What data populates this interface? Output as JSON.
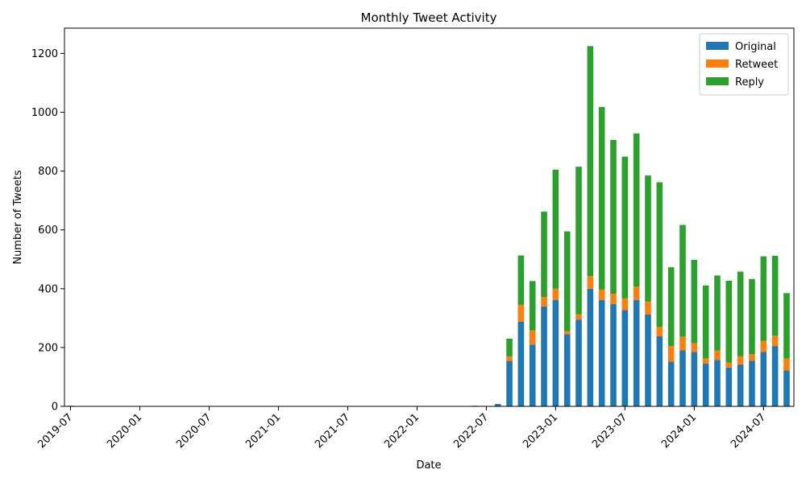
{
  "chart_data": {
    "type": "bar",
    "stacked": true,
    "title": "Monthly Tweet Activity",
    "xlabel": "Date",
    "ylabel": "Number of Tweets",
    "ylim": [
      0,
      1286
    ],
    "y_ticks": [
      0,
      200,
      400,
      600,
      800,
      1000,
      1200
    ],
    "grid": false,
    "legend_position": "top-right",
    "x_ticks": [
      "2019-07",
      "2020-01",
      "2020-07",
      "2021-01",
      "2021-07",
      "2022-01",
      "2022-07",
      "2023-01",
      "2023-07",
      "2024-01",
      "2024-07"
    ],
    "x": [
      "2019-07",
      "2019-08",
      "2019-09",
      "2019-10",
      "2019-11",
      "2019-12",
      "2020-01",
      "2020-02",
      "2020-03",
      "2020-04",
      "2020-05",
      "2020-06",
      "2020-07",
      "2020-08",
      "2020-09",
      "2020-10",
      "2020-11",
      "2020-12",
      "2021-01",
      "2021-02",
      "2021-03",
      "2021-04",
      "2021-05",
      "2021-06",
      "2021-07",
      "2021-08",
      "2021-09",
      "2021-10",
      "2021-11",
      "2021-12",
      "2022-01",
      "2022-02",
      "2022-03",
      "2022-04",
      "2022-05",
      "2022-06",
      "2022-07",
      "2022-08",
      "2022-09",
      "2022-10",
      "2022-11",
      "2022-12",
      "2023-01",
      "2023-02",
      "2023-03",
      "2023-04",
      "2023-05",
      "2023-06",
      "2023-07",
      "2023-08",
      "2023-09",
      "2023-10",
      "2023-11",
      "2023-12",
      "2024-01",
      "2024-02",
      "2024-03",
      "2024-04",
      "2024-05",
      "2024-06",
      "2024-07",
      "2024-08",
      "2024-09"
    ],
    "series": [
      {
        "name": "Original",
        "color": "#1f77b4",
        "values": [
          2,
          0,
          0,
          0,
          0,
          0,
          0,
          0,
          0,
          0,
          0,
          0,
          0,
          0,
          0,
          0,
          0,
          0,
          0,
          0,
          0,
          0,
          0,
          0,
          0,
          0,
          0,
          0,
          0,
          0,
          0,
          0,
          0,
          0,
          0,
          2,
          0,
          8,
          155,
          288,
          210,
          340,
          362,
          245,
          295,
          400,
          362,
          348,
          327,
          362,
          312,
          238,
          152,
          190,
          185,
          145,
          158,
          132,
          142,
          155,
          185,
          205,
          122
        ]
      },
      {
        "name": "Retweet",
        "color": "#ff7f0e",
        "values": [
          0,
          0,
          0,
          0,
          0,
          0,
          0,
          0,
          0,
          0,
          0,
          0,
          0,
          0,
          0,
          0,
          0,
          0,
          0,
          0,
          0,
          0,
          0,
          0,
          0,
          0,
          0,
          0,
          0,
          0,
          0,
          0,
          0,
          0,
          0,
          0,
          0,
          0,
          15,
          57,
          48,
          32,
          38,
          10,
          18,
          43,
          35,
          35,
          40,
          45,
          45,
          32,
          53,
          47,
          30,
          18,
          32,
          17,
          28,
          22,
          38,
          35,
          40
        ]
      },
      {
        "name": "Reply",
        "color": "#2ca02c",
        "values": [
          0,
          0,
          0,
          0,
          0,
          0,
          0,
          0,
          0,
          0,
          0,
          0,
          0,
          0,
          0,
          0,
          0,
          0,
          0,
          0,
          0,
          0,
          0,
          0,
          0,
          0,
          0,
          0,
          0,
          0,
          0,
          0,
          0,
          0,
          0,
          0,
          0,
          0,
          60,
          168,
          168,
          290,
          405,
          340,
          502,
          782,
          621,
          523,
          482,
          521,
          428,
          492,
          268,
          380,
          283,
          248,
          255,
          278,
          288,
          256,
          287,
          272,
          223
        ]
      }
    ]
  }
}
